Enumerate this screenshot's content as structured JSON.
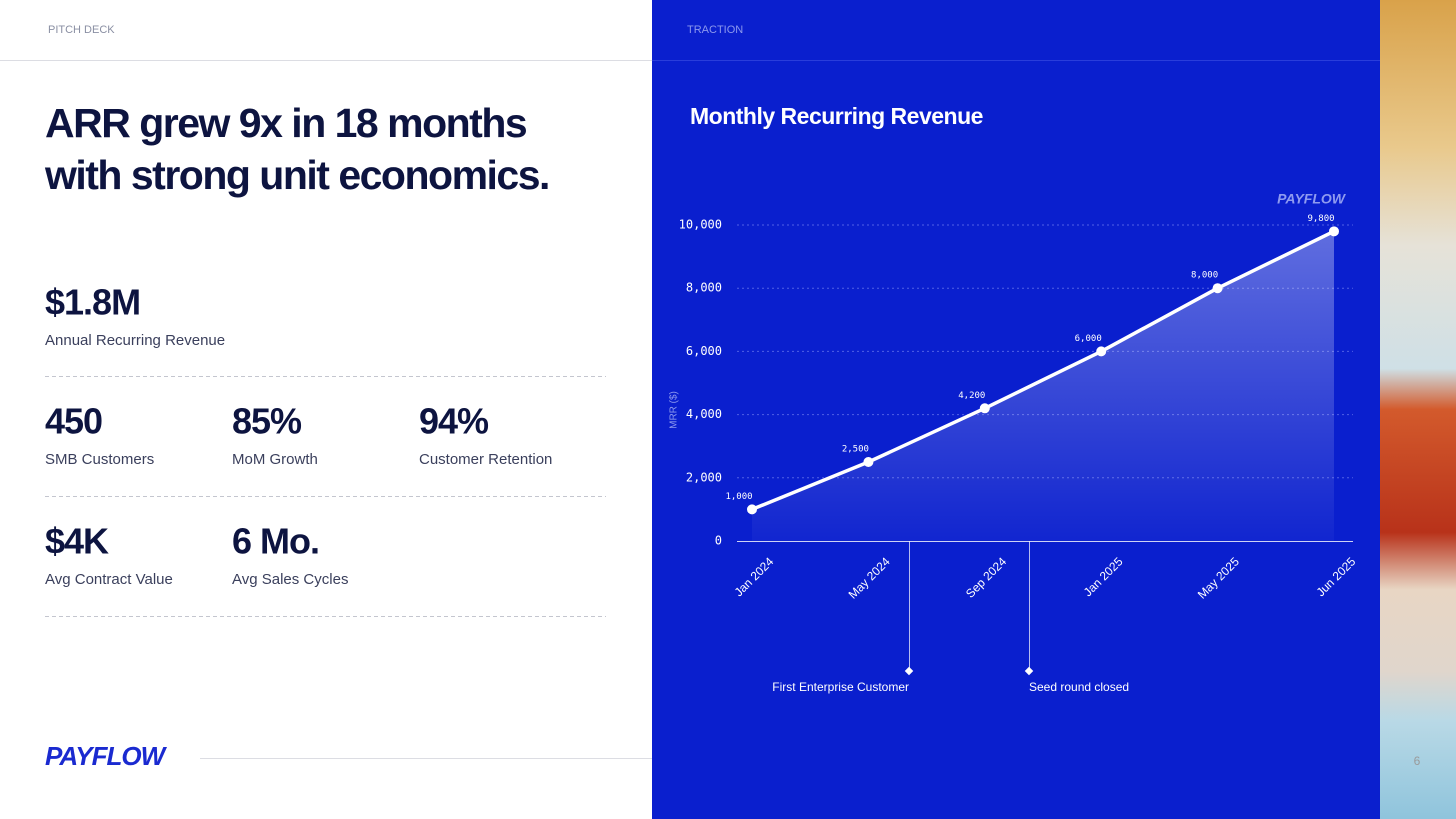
{
  "header": {
    "left": "PITCH DECK",
    "right": "TRACTION"
  },
  "headline": [
    "ARR grew 9x in 18 months",
    "with strong unit economics."
  ],
  "metrics": [
    {
      "value": "$1.8M",
      "label": "Annual Recurring Revenue"
    },
    {
      "value": "450",
      "label": "SMB Customers"
    },
    {
      "value": "85%",
      "label": "MoM Growth"
    },
    {
      "value": "94%",
      "label": "Customer Retention"
    },
    {
      "value": "$4K",
      "label": "Avg Contract Value"
    },
    {
      "value": "6 Mo.",
      "label": "Avg Sales Cycles"
    }
  ],
  "logo": "PAYFLOW",
  "page_number": 6,
  "chart_data": {
    "type": "line",
    "title": "Monthly Recurring Revenue",
    "watermark": "PAYFLOW",
    "y_label": "MRR ($)",
    "categories": [
      "Jan 2024",
      "May 2024",
      "Sep 2024",
      "Jan 2025",
      "May 2025",
      "Jun 2025"
    ],
    "values": [
      1000,
      2500,
      4200,
      6000,
      8000,
      9800
    ],
    "value_labels": [
      "1,000",
      "2,500",
      "4,200",
      "6,000",
      "8,000",
      "9,800"
    ],
    "color": "#ffffff",
    "ylim": [
      0,
      10000
    ],
    "yticks": [
      0,
      {
        "value": 2000,
        "label": "2,000"
      },
      {
        "value": 4000,
        "label": "4,000"
      },
      {
        "value": 6000,
        "label": "6,000"
      },
      {
        "value": 8000,
        "label": "8,000"
      },
      {
        "value": 10000,
        "label": "10,000"
      }
    ],
    "grid": true,
    "annotations": [
      {
        "text": "First Enterprise Customer"
      },
      {
        "text": "Seed round closed"
      }
    ]
  }
}
